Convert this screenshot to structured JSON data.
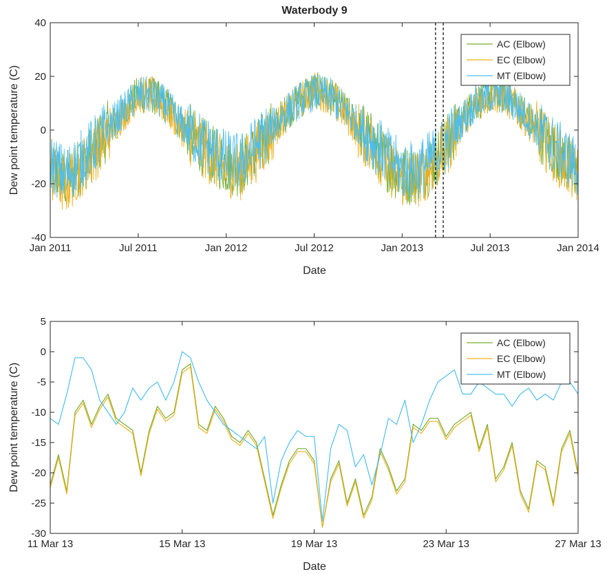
{
  "chart_data": [
    {
      "type": "line",
      "title": "Waterbody 9",
      "xlabel": "Date",
      "ylabel": "Dew point temperature (C)",
      "xlim": [
        "2011-01-01",
        "2014-01-01"
      ],
      "ylim": [
        -40,
        40
      ],
      "x_ticks": [
        "Jan 2011",
        "Jul 2011",
        "Jan 2012",
        "Jul 2012",
        "Jan 2013",
        "Jul 2013",
        "Jan 2014"
      ],
      "y_ticks": [
        "-40",
        "-20",
        "0",
        "20",
        "40"
      ],
      "grid": false,
      "legend": "top-right",
      "highlight_window": [
        "2013-03-11",
        "2013-03-27"
      ],
      "x": [
        "2011-01-01",
        "2011-02-01",
        "2011-03-01",
        "2011-04-01",
        "2011-05-01",
        "2011-06-01",
        "2011-07-01",
        "2011-08-01",
        "2011-09-01",
        "2011-10-01",
        "2011-11-01",
        "2011-12-01",
        "2012-01-01",
        "2012-02-01",
        "2012-03-01",
        "2012-04-01",
        "2012-05-01",
        "2012-06-01",
        "2012-07-01",
        "2012-08-01",
        "2012-09-01",
        "2012-10-01",
        "2012-11-01",
        "2012-12-01",
        "2013-01-01",
        "2013-02-01",
        "2013-03-01",
        "2013-04-01",
        "2013-05-01",
        "2013-06-01",
        "2013-07-01",
        "2013-08-01",
        "2013-09-01",
        "2013-10-01",
        "2013-11-01",
        "2013-12-01",
        "2014-01-01"
      ],
      "series": [
        {
          "name": "AC (Elbow)",
          "color": "#77AC30",
          "values": [
            -14,
            -19,
            -14,
            -8,
            0,
            7,
            13,
            13,
            9,
            2,
            -4,
            -9,
            -13,
            -14,
            -8,
            -1,
            6,
            11,
            15,
            13,
            8,
            1,
            -5,
            -12,
            -17,
            -17,
            -13,
            -6,
            3,
            10,
            13,
            13,
            8,
            2,
            -5,
            -11,
            -16
          ]
        },
        {
          "name": "EC (Elbow)",
          "color": "#EDB120",
          "values": [
            -16,
            -21,
            -15,
            -9,
            -1,
            6,
            13,
            13,
            8,
            1,
            -5,
            -10,
            -14,
            -15,
            -9,
            -2,
            5,
            11,
            15,
            13,
            7,
            0,
            -6,
            -13,
            -18,
            -18,
            -14,
            -7,
            2,
            10,
            13,
            13,
            7,
            1,
            -6,
            -12,
            -18
          ]
        },
        {
          "name": "MT (Elbow)",
          "color": "#4DBEEE",
          "values": [
            -12,
            -17,
            -12,
            -6,
            1,
            7,
            13,
            13,
            9,
            2,
            -3,
            -7,
            -11,
            -12,
            -6,
            0,
            6,
            11,
            14,
            13,
            8,
            2,
            -4,
            -10,
            -15,
            -15,
            -11,
            -5,
            3,
            10,
            13,
            13,
            8,
            2,
            -4,
            -9,
            -14
          ]
        }
      ]
    },
    {
      "type": "line",
      "xlabel": "Date",
      "ylabel": "Dew point temperature (C)",
      "xlim": [
        "2013-03-11",
        "2013-03-27"
      ],
      "ylim": [
        -30,
        5
      ],
      "x_ticks": [
        "11 Mar 13",
        "15 Mar 13",
        "19 Mar 13",
        "23 Mar 13",
        "27 Mar 13"
      ],
      "y_ticks": [
        "-30",
        "-25",
        "-20",
        "-15",
        "-10",
        "-5",
        "0",
        "5"
      ],
      "grid": false,
      "legend": "top-right",
      "x": [
        "2013-03-11 00:00",
        "2013-03-11 06:00",
        "2013-03-11 12:00",
        "2013-03-11 18:00",
        "2013-03-12 00:00",
        "2013-03-12 06:00",
        "2013-03-12 12:00",
        "2013-03-12 18:00",
        "2013-03-13 00:00",
        "2013-03-13 06:00",
        "2013-03-13 12:00",
        "2013-03-13 18:00",
        "2013-03-14 00:00",
        "2013-03-14 06:00",
        "2013-03-14 12:00",
        "2013-03-14 18:00",
        "2013-03-15 00:00",
        "2013-03-15 06:00",
        "2013-03-15 12:00",
        "2013-03-15 18:00",
        "2013-03-16 00:00",
        "2013-03-16 06:00",
        "2013-03-16 12:00",
        "2013-03-16 18:00",
        "2013-03-17 00:00",
        "2013-03-17 06:00",
        "2013-03-17 12:00",
        "2013-03-17 18:00",
        "2013-03-18 00:00",
        "2013-03-18 06:00",
        "2013-03-18 12:00",
        "2013-03-18 18:00",
        "2013-03-19 00:00",
        "2013-03-19 06:00",
        "2013-03-19 12:00",
        "2013-03-19 18:00",
        "2013-03-20 00:00",
        "2013-03-20 06:00",
        "2013-03-20 12:00",
        "2013-03-20 18:00",
        "2013-03-21 00:00",
        "2013-03-21 06:00",
        "2013-03-21 12:00",
        "2013-03-21 18:00",
        "2013-03-22 00:00",
        "2013-03-22 06:00",
        "2013-03-22 12:00",
        "2013-03-22 18:00",
        "2013-03-23 00:00",
        "2013-03-23 06:00",
        "2013-03-23 12:00",
        "2013-03-23 18:00",
        "2013-03-24 00:00",
        "2013-03-24 06:00",
        "2013-03-24 12:00",
        "2013-03-24 18:00",
        "2013-03-25 00:00",
        "2013-03-25 06:00",
        "2013-03-25 12:00",
        "2013-03-25 18:00",
        "2013-03-26 00:00",
        "2013-03-26 06:00",
        "2013-03-26 12:00",
        "2013-03-26 18:00",
        "2013-03-27 00:00"
      ],
      "series": [
        {
          "name": "AC (Elbow)",
          "color": "#77AC30",
          "values": [
            -22,
            -17,
            -23,
            -10,
            -8,
            -12,
            -9,
            -7,
            -11,
            -12,
            -13,
            -20,
            -13,
            -9,
            -11,
            -10,
            -3,
            -2,
            -12,
            -13,
            -9,
            -11,
            -14,
            -15,
            -13,
            -15,
            -21,
            -27,
            -22,
            -18,
            -16,
            -16,
            -18,
            -29,
            -21,
            -18,
            -25,
            -21,
            -27,
            -24,
            -16,
            -19,
            -23,
            -21,
            -12,
            -13,
            -11,
            -11,
            -14,
            -12,
            -11,
            -10,
            -16,
            -12,
            -21,
            -19,
            -15,
            -23,
            -26,
            -18,
            -19,
            -25,
            -16,
            -13,
            -20
          ]
        },
        {
          "name": "EC (Elbow)",
          "color": "#EDB120",
          "values": [
            -22.5,
            -17.5,
            -23.5,
            -10.5,
            -8.5,
            -12.5,
            -9.5,
            -7.5,
            -11.5,
            -12.5,
            -13.5,
            -20.5,
            -13.5,
            -9.5,
            -11.5,
            -10.5,
            -3.5,
            -2.5,
            -12.5,
            -13.5,
            -9.5,
            -11.5,
            -14.5,
            -15.5,
            -13.5,
            -15.5,
            -21.5,
            -27.5,
            -22.5,
            -18.5,
            -16.5,
            -16.5,
            -18.5,
            -29,
            -21.5,
            -18.5,
            -25.5,
            -21.5,
            -27.5,
            -24.5,
            -16.5,
            -19.5,
            -23.5,
            -21.5,
            -12.5,
            -13.5,
            -11.5,
            -11.5,
            -14.5,
            -12.5,
            -11.5,
            -10.5,
            -16.5,
            -12.5,
            -21.5,
            -19.5,
            -15.5,
            -23.5,
            -26.5,
            -18.5,
            -19.5,
            -25.5,
            -16.5,
            -13.5,
            -20.5
          ]
        },
        {
          "name": "MT (Elbow)",
          "color": "#4DBEEE",
          "values": [
            -11,
            -12,
            -7,
            -1,
            -1,
            -3,
            -8,
            -10,
            -12,
            -10,
            -6,
            -8,
            -6,
            -5,
            -8,
            -5,
            0,
            -1,
            -5,
            -8,
            -10,
            -12,
            -13,
            -14,
            -15,
            -16,
            -14,
            -25,
            -18,
            -15,
            -13,
            -14,
            -14,
            -28,
            -16,
            -12,
            -13,
            -19,
            -17,
            -22,
            -17,
            -11,
            -12,
            -8,
            -15,
            -12,
            -8,
            -5,
            -4,
            -3,
            -7,
            -7,
            -5,
            -6,
            -7,
            -7,
            -9,
            -7,
            -6,
            -8,
            -7,
            -8,
            -5,
            -5,
            -7
          ]
        }
      ]
    }
  ]
}
